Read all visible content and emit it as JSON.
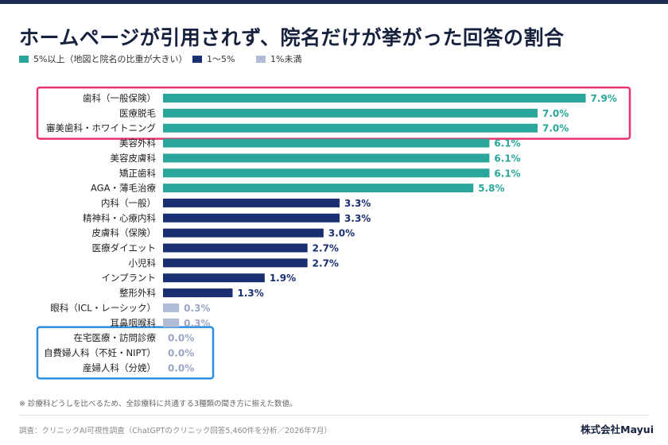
{
  "title": "ホームページが引用されず、院名だけが挙がった回答の割合",
  "legend": [
    {
      "label": "5%以上（地図と院名の比重が大きい）",
      "color": "#2aa69a"
    },
    {
      "label": "1〜5%",
      "color": "#1a2e72"
    },
    {
      "label": "1%未満",
      "color": "#b0bbd6"
    }
  ],
  "chart_data": {
    "type": "bar",
    "orientation": "horizontal",
    "categories": [
      "歯科（一般保険）",
      "医療脱毛",
      "審美歯科・ホワイトニング",
      "美容外科",
      "美容皮膚科",
      "矯正歯科",
      "AGA・薄毛治療",
      "内科（一般）",
      "精神科・心療内科",
      "皮膚科（保険）",
      "医療ダイエット",
      "小児科",
      "インプラント",
      "整形外科",
      "眼科（ICL・レーシック）",
      "耳鼻咽喉科",
      "在宅医療・訪問診療",
      "自費婦人科（不妊・NIPT）",
      "産婦人科（分娩）"
    ],
    "values": [
      7.9,
      7.0,
      7.0,
      6.1,
      6.1,
      6.1,
      5.8,
      3.3,
      3.3,
      3.0,
      2.7,
      2.7,
      1.9,
      1.3,
      0.3,
      0.3,
      0.0,
      0.0,
      0.0
    ],
    "value_labels": [
      "7.9%",
      "7.0%",
      "7.0%",
      "6.1%",
      "6.1%",
      "6.1%",
      "5.8%",
      "3.3%",
      "3.3%",
      "3.0%",
      "2.7%",
      "2.7%",
      "1.9%",
      "1.3%",
      "0.3%",
      "0.3%",
      "0.0%",
      "0.0%",
      "0.0%"
    ],
    "colors": [
      "#2aa69a",
      "#2aa69a",
      "#2aa69a",
      "#2aa69a",
      "#2aa69a",
      "#2aa69a",
      "#2aa69a",
      "#1a2e72",
      "#1a2e72",
      "#1a2e72",
      "#1a2e72",
      "#1a2e72",
      "#1a2e72",
      "#1a2e72",
      "#b0bbd6",
      "#b0bbd6",
      "#b0bbd6",
      "#b0bbd6",
      "#b0bbd6"
    ],
    "label_colors": [
      "#2aa69a",
      "#2aa69a",
      "#2aa69a",
      "#2aa69a",
      "#2aa69a",
      "#2aa69a",
      "#2aa69a",
      "#1a2e72",
      "#1a2e72",
      "#1a2e72",
      "#1a2e72",
      "#1a2e72",
      "#1a2e72",
      "#1a2e72",
      "#9aa6c4",
      "#9aa6c4",
      "#9aa6c4",
      "#9aa6c4",
      "#9aa6c4"
    ],
    "xlim": [
      0,
      8.1
    ],
    "grid": false,
    "legend_position": "top-left",
    "highlight_groups": [
      {
        "first": 0,
        "last": 2,
        "color": "#e8336d"
      },
      {
        "first": 16,
        "last": 18,
        "color": "#2e8fe0"
      }
    ]
  },
  "footnote": "※ 診療科どうしを比べるため、全診療科に共通する3種類の聞き方に揃えた数値。",
  "source": "調査：クリニックAI可視性調査（ChatGPTのクリニック回答5,460件を分析／2026年7月）",
  "brand": "株式会社Mayui"
}
